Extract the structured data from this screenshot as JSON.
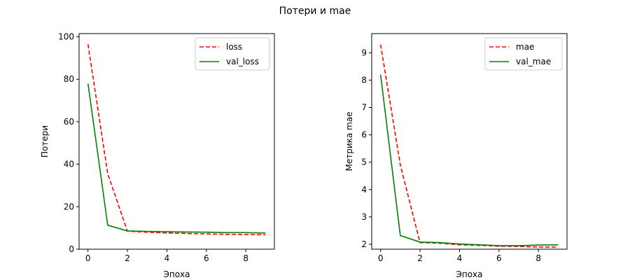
{
  "figure": {
    "suptitle": "Потери и mae"
  },
  "chart_data": [
    {
      "type": "line",
      "title": "",
      "xlabel": "Эпоха",
      "ylabel": "Потери",
      "xlim": [
        -0.45,
        9.45
      ],
      "ylim": [
        0,
        101.5
      ],
      "xticks": [
        0,
        2,
        4,
        6,
        8
      ],
      "yticks": [
        0,
        20,
        40,
        60,
        80,
        100
      ],
      "grid": false,
      "legend_position": "top-right",
      "x": [
        0,
        1,
        2,
        3,
        4,
        5,
        6,
        7,
        8,
        9
      ],
      "series": [
        {
          "name": "loss",
          "color": "#ff0000",
          "style": "dashed",
          "values": [
            96.5,
            35.5,
            8.5,
            8.0,
            7.6,
            7.4,
            7.2,
            7.0,
            6.9,
            6.8
          ]
        },
        {
          "name": "val_loss",
          "color": "#008000",
          "style": "solid",
          "values": [
            78.0,
            11.3,
            8.6,
            8.4,
            8.2,
            8.1,
            8.0,
            7.8,
            7.8,
            7.6
          ]
        }
      ]
    },
    {
      "type": "line",
      "title": "",
      "xlabel": "Эпоха",
      "ylabel": "Метрика mae",
      "xlim": [
        -0.45,
        9.45
      ],
      "ylim": [
        1.82,
        9.7
      ],
      "xticks": [
        0,
        2,
        4,
        6,
        8
      ],
      "yticks": [
        2,
        3,
        4,
        5,
        6,
        7,
        8,
        9
      ],
      "grid": false,
      "legend_position": "top-right",
      "x": [
        0,
        1,
        2,
        3,
        4,
        5,
        6,
        7,
        8,
        9
      ],
      "series": [
        {
          "name": "mae",
          "color": "#ff0000",
          "style": "dashed",
          "values": [
            9.3,
            4.9,
            2.06,
            2.04,
            1.98,
            1.96,
            1.93,
            1.92,
            1.9,
            1.9
          ]
        },
        {
          "name": "val_mae",
          "color": "#008000",
          "style": "solid",
          "values": [
            8.2,
            2.32,
            2.08,
            2.06,
            2.01,
            1.98,
            1.95,
            1.95,
            1.97,
            1.98
          ]
        }
      ]
    }
  ]
}
